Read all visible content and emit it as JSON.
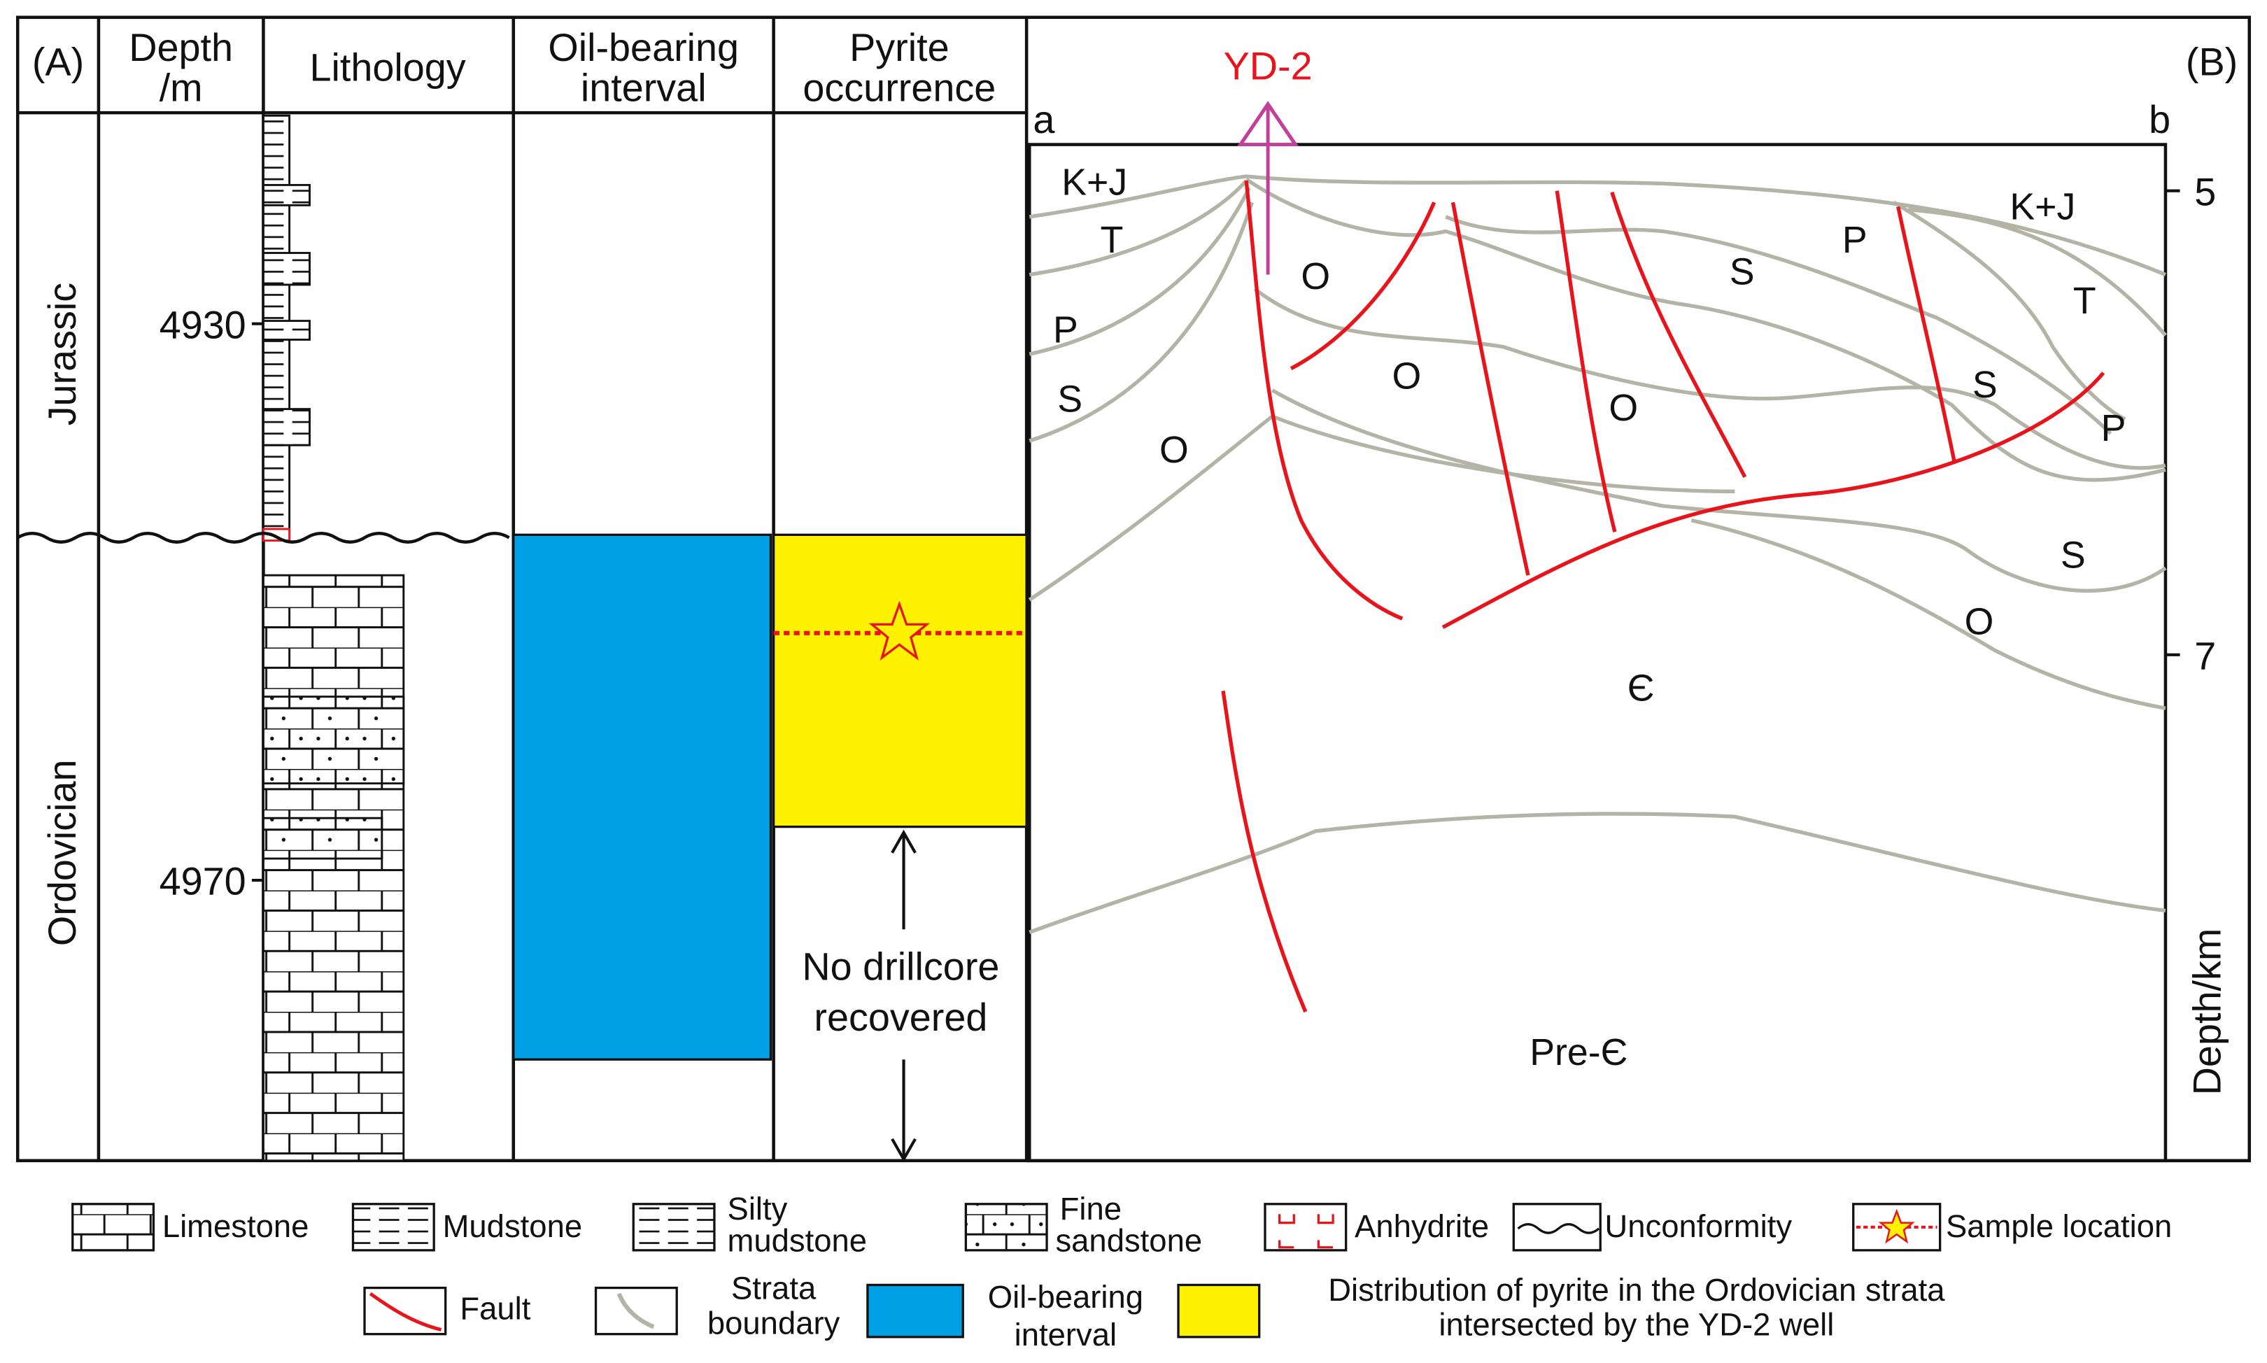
{
  "panel_a": {
    "label": "(A)",
    "headers": {
      "depth": [
        "Depth",
        "/m"
      ],
      "lithology": "Lithology",
      "oil": [
        "Oil-bearing",
        "interval"
      ],
      "pyrite": [
        "Pyrite",
        "occurrence"
      ]
    },
    "depth_ticks": [
      "4930",
      "4970"
    ],
    "periods": [
      "Jurassic",
      "Ordovician"
    ],
    "no_core": [
      "No drillcore",
      "recovered"
    ]
  },
  "panel_b": {
    "label": "(B)",
    "well": "YD-2",
    "end_a": "a",
    "end_b": "b",
    "depth_axis_label": "Depth/km",
    "depth_ticks": [
      "5",
      "7"
    ],
    "strata": [
      "K+J",
      "T",
      "P",
      "S",
      "O",
      "O",
      "O",
      "S",
      "P",
      "O",
      "K+J",
      "T",
      "S",
      "P",
      "S",
      "O",
      "Є",
      "Pre-Є"
    ]
  },
  "legend": {
    "limestone": "Limestone",
    "mudstone": "Mudstone",
    "silty": [
      "Silty",
      "mudstone"
    ],
    "fine": [
      "Fine",
      "sandstone"
    ],
    "anhydrite": "Anhydrite",
    "unconformity": "Unconformity",
    "sample": "Sample location",
    "fault": "Fault",
    "strata": [
      "Strata",
      "boundary"
    ],
    "oil": [
      "Oil-bearing",
      "interval"
    ],
    "pyrite": [
      "Distribution of pyrite in the Ordovician strata",
      "intersected by the YD-2 well"
    ]
  }
}
